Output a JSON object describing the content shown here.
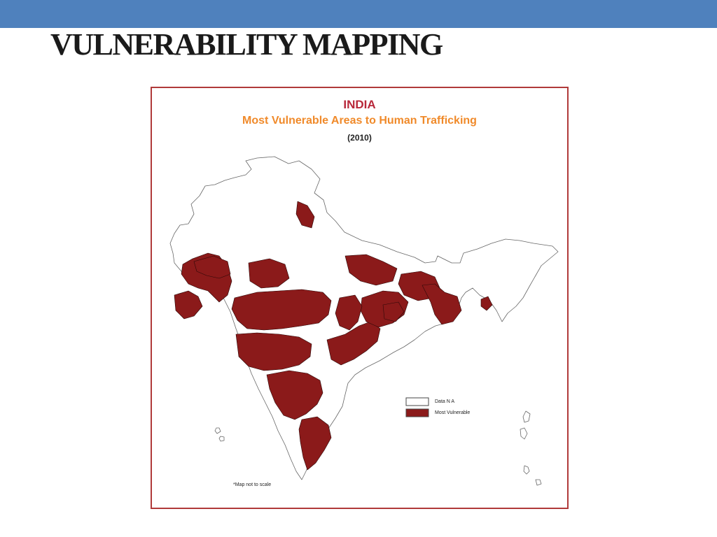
{
  "slide": {
    "title": "VULNERABILITY MAPPING"
  },
  "map": {
    "country": "INDIA",
    "subtitle": "Most Vulnerable Areas to Human Trafficking",
    "year": "(2010)",
    "footnote": "*Map not to scale",
    "legend": [
      {
        "label": "Data N A",
        "color": "#ffffff"
      },
      {
        "label": "Most Vulnerable",
        "color": "#8b1a1a"
      }
    ]
  },
  "colors": {
    "top_bar": "#4f81bd",
    "frame": "#b03a3a",
    "vulnerable": "#8b1a1a",
    "title_red": "#b8283a",
    "title_orange": "#f08a2a"
  }
}
